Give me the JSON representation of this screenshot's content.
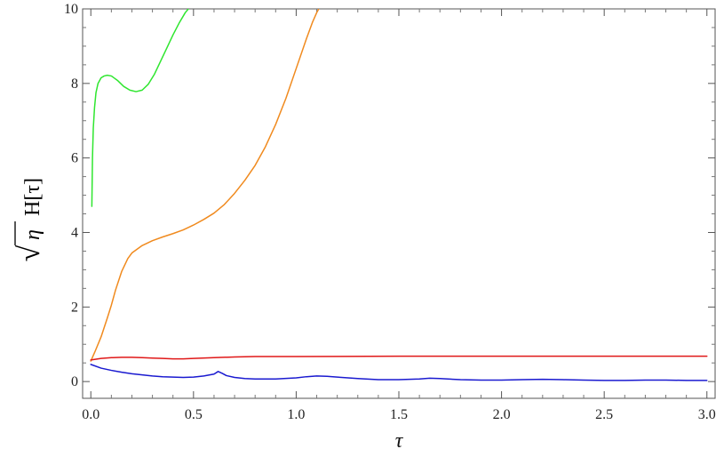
{
  "chart_data": {
    "type": "line",
    "title": "",
    "xlabel": "τ",
    "ylabel": {
      "radical_symbol": "√",
      "radicand": "η",
      "function_text": "H[τ]"
    },
    "xlim": [
      -0.04,
      3.04
    ],
    "ylim": [
      -0.45,
      10
    ],
    "x_ticks": [
      {
        "value": 0.0,
        "label": "0.0"
      },
      {
        "value": 0.5,
        "label": "0.5"
      },
      {
        "value": 1.0,
        "label": "1.0"
      },
      {
        "value": 1.5,
        "label": "1.5"
      },
      {
        "value": 2.0,
        "label": "2.0"
      },
      {
        "value": 2.5,
        "label": "2.5"
      },
      {
        "value": 3.0,
        "label": "3.0"
      }
    ],
    "y_ticks": [
      {
        "value": 0,
        "label": "0"
      },
      {
        "value": 2,
        "label": "2"
      },
      {
        "value": 4,
        "label": "4"
      },
      {
        "value": 6,
        "label": "6"
      },
      {
        "value": 8,
        "label": "8"
      },
      {
        "value": 10,
        "label": "10"
      }
    ],
    "grid": false,
    "series": [
      {
        "color": "#2fe62f",
        "x": [
          0.005,
          0.008,
          0.012,
          0.018,
          0.025,
          0.035,
          0.05,
          0.065,
          0.08,
          0.1,
          0.13,
          0.16,
          0.19,
          0.22,
          0.25,
          0.28,
          0.31,
          0.34,
          0.37,
          0.4,
          0.43,
          0.46,
          0.475
        ],
        "y": [
          4.7,
          6.0,
          6.8,
          7.35,
          7.75,
          8.0,
          8.15,
          8.2,
          8.22,
          8.2,
          8.08,
          7.92,
          7.82,
          7.78,
          7.82,
          7.98,
          8.25,
          8.6,
          8.95,
          9.3,
          9.62,
          9.9,
          10.0
        ]
      },
      {
        "color": "#f08a1e",
        "x": [
          0.0,
          0.02,
          0.05,
          0.08,
          0.1,
          0.12,
          0.15,
          0.18,
          0.2,
          0.25,
          0.3,
          0.35,
          0.4,
          0.45,
          0.5,
          0.55,
          0.6,
          0.65,
          0.7,
          0.75,
          0.8,
          0.85,
          0.9,
          0.95,
          1.0,
          1.05,
          1.08,
          1.1,
          1.11
        ],
        "y": [
          0.55,
          0.8,
          1.2,
          1.7,
          2.05,
          2.45,
          2.95,
          3.3,
          3.45,
          3.65,
          3.78,
          3.88,
          3.97,
          4.07,
          4.2,
          4.35,
          4.52,
          4.75,
          5.05,
          5.4,
          5.8,
          6.3,
          6.9,
          7.6,
          8.4,
          9.2,
          9.65,
          9.9,
          10.0
        ]
      },
      {
        "color": "#e01818",
        "x": [
          0.0,
          0.05,
          0.1,
          0.15,
          0.2,
          0.25,
          0.3,
          0.35,
          0.4,
          0.45,
          0.5,
          0.6,
          0.7,
          0.8,
          1.0,
          1.5,
          2.0,
          2.5,
          3.0
        ],
        "y": [
          0.58,
          0.62,
          0.64,
          0.65,
          0.65,
          0.64,
          0.63,
          0.62,
          0.61,
          0.61,
          0.62,
          0.64,
          0.66,
          0.67,
          0.67,
          0.68,
          0.68,
          0.68,
          0.68
        ]
      },
      {
        "color": "#1a1ad0",
        "x": [
          0.0,
          0.05,
          0.1,
          0.15,
          0.2,
          0.25,
          0.3,
          0.35,
          0.4,
          0.45,
          0.5,
          0.55,
          0.6,
          0.62,
          0.64,
          0.66,
          0.7,
          0.75,
          0.8,
          0.9,
          1.0,
          1.05,
          1.1,
          1.15,
          1.2,
          1.3,
          1.4,
          1.5,
          1.6,
          1.65,
          1.7,
          1.8,
          1.9,
          2.0,
          2.1,
          2.2,
          2.3,
          2.4,
          2.5,
          2.6,
          2.7,
          2.8,
          2.9,
          3.0
        ],
        "y": [
          0.46,
          0.36,
          0.3,
          0.25,
          0.21,
          0.18,
          0.15,
          0.13,
          0.12,
          0.11,
          0.12,
          0.15,
          0.2,
          0.27,
          0.22,
          0.16,
          0.11,
          0.08,
          0.07,
          0.07,
          0.1,
          0.13,
          0.15,
          0.14,
          0.12,
          0.08,
          0.05,
          0.05,
          0.07,
          0.09,
          0.08,
          0.05,
          0.04,
          0.04,
          0.05,
          0.06,
          0.05,
          0.04,
          0.03,
          0.03,
          0.04,
          0.04,
          0.03,
          0.03
        ]
      }
    ]
  }
}
